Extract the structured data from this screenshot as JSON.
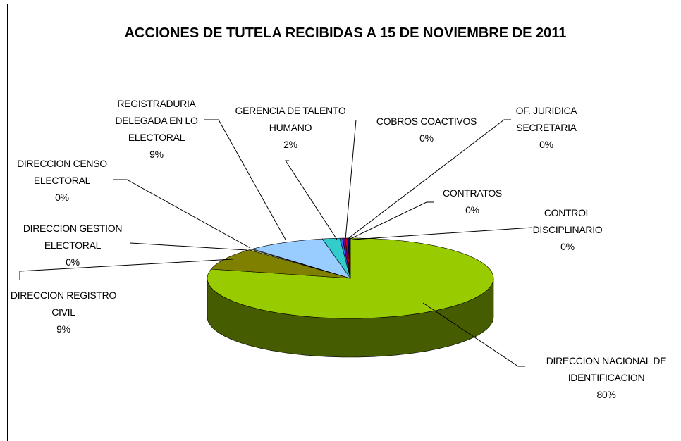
{
  "chart_data": {
    "type": "pie3d",
    "title": "ACCIONES DE TUTELA RECIBIDAS A 15 DE NOVIEMBRE DE 2011",
    "categories": [
      "DIRECCION NACIONAL DE IDENTIFICACION",
      "DIRECCION REGISTRO CIVIL",
      "DIRECCION GESTION ELECTORAL",
      "DIRECCION CENSO ELECTORAL",
      "REGISTRADURIA DELEGADA EN LO ELECTORAL",
      "GERENCIA DE TALENTO HUMANO",
      "COBROS COACTIVOS",
      "OF. JURIDICA SECRETARIA",
      "CONTRATOS",
      "CONTROL DISCIPLINARIO"
    ],
    "values": [
      80,
      9,
      0.3,
      0.2,
      9,
      2,
      0.3,
      0.3,
      0.3,
      0.3
    ],
    "value_labels": [
      "80%",
      "9%",
      "0%",
      "0%",
      "9%",
      "2%",
      "0%",
      "0%",
      "0%",
      "0%"
    ],
    "colors": [
      "#99cc00",
      "#808000",
      "#ffffcc",
      "#ccffff",
      "#99ccff",
      "#33cccc",
      "#3366ff",
      "#800080",
      "#cc0000",
      "#000080"
    ]
  }
}
